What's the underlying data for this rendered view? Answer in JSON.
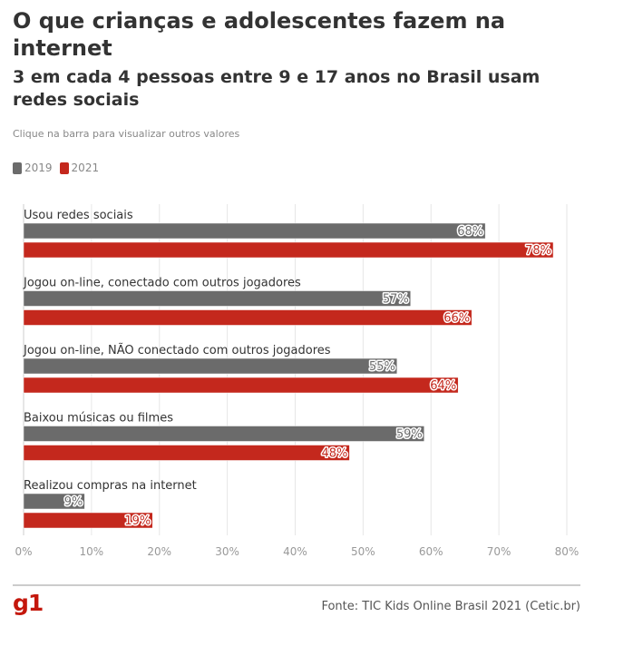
{
  "header": {
    "title": "O que crianças e adolescentes fazem na internet",
    "subtitle": "3 em cada 4 pessoas entre 9 e 17 anos no Brasil usam redes sociais",
    "instruction": "Clique na barra para visualizar outros valores"
  },
  "colors": {
    "s2019": "#6b6b6b",
    "s2021": "#c4281d"
  },
  "chart_data": {
    "type": "bar",
    "orientation": "horizontal",
    "categories": [
      "Usou redes sociais",
      "Jogou on-line, conectado com outros jogadores",
      "Jogou on-line, NÃO conectado com outros jogadores",
      "Baixou músicas ou filmes",
      "Realizou compras na internet"
    ],
    "series": [
      {
        "name": "2019",
        "values": [
          68,
          57,
          55,
          59,
          9
        ]
      },
      {
        "name": "2021",
        "values": [
          78,
          66,
          64,
          48,
          19
        ]
      }
    ],
    "value_suffix": "%",
    "xlim": [
      0,
      80
    ],
    "xticks": [
      0,
      10,
      20,
      30,
      40,
      50,
      60,
      70,
      80
    ],
    "grid": true,
    "legend": "top-left"
  },
  "footer": {
    "logo": "g1",
    "source": "Fonte: TIC Kids Online Brasil 2021 (Cetic.br)"
  }
}
